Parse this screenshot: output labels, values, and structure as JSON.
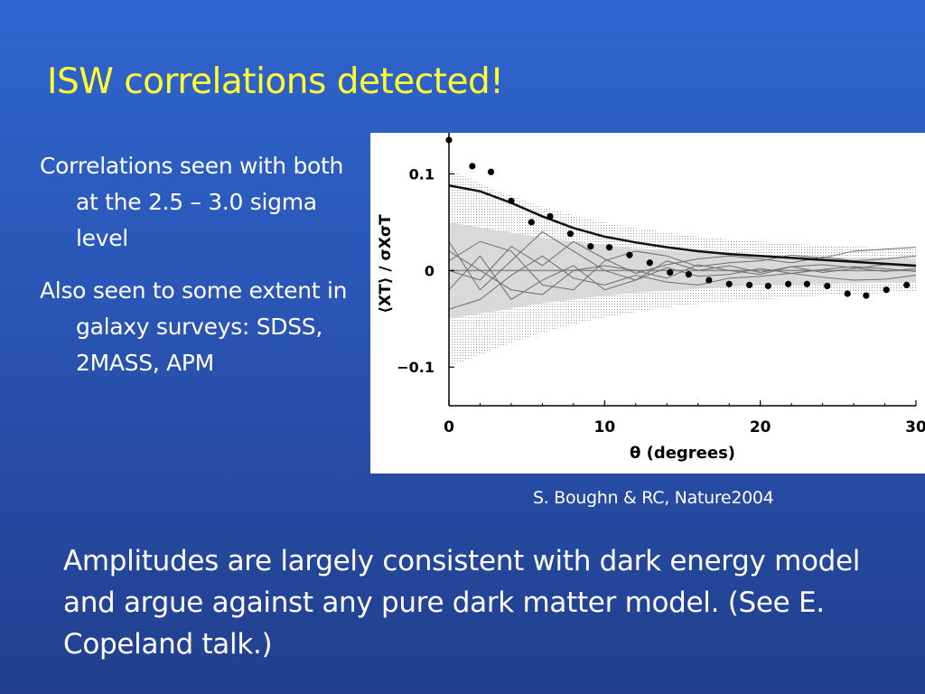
{
  "slide": {
    "title": "ISW correlations detected!",
    "bullets": [
      "Correlations seen with both at the 2.5 – 3.0 sigma level",
      "Also seen to some extent in galaxy surveys: SDSS, 2MASS, APM"
    ],
    "caption": "S. Boughn & RC, Nature2004",
    "summary": "Amplitudes are largely consistent with dark energy model and argue against any pure dark matter model.  (See E. Copeland talk.)"
  },
  "colors": {
    "title": "#ffff33",
    "text": "#ffffff",
    "background": "#2a55b4"
  },
  "chart_data": {
    "type": "scatter",
    "xlabel": "θ (degrees)",
    "ylabel": "⟨XT⟩ / σXσT",
    "xlim": [
      0,
      30
    ],
    "ylim": [
      -0.14,
      0.135
    ],
    "xticks": [
      0,
      10,
      20,
      30
    ],
    "yticks": [
      0.1,
      0,
      -0.1
    ],
    "xtick_labels": [
      "0",
      "10",
      "20",
      "30"
    ],
    "ytick_labels": [
      "0.1",
      "0",
      "−0.1"
    ],
    "grid": false,
    "points": {
      "x": [
        0,
        1.5,
        2.7,
        4,
        5.3,
        6.5,
        7.8,
        9.1,
        10.3,
        11.6,
        12.9,
        14.2,
        15.4,
        16.7,
        18,
        19.3,
        20.5,
        21.8,
        23,
        24.3,
        25.6,
        26.8,
        28.1,
        29.4
      ],
      "y": [
        0.135,
        0.108,
        0.102,
        0.072,
        0.05,
        0.056,
        0.038,
        0.025,
        0.024,
        0.016,
        0.008,
        -0.002,
        -0.004,
        -0.01,
        -0.014,
        -0.015,
        -0.016,
        -0.014,
        -0.014,
        -0.016,
        -0.024,
        -0.026,
        -0.02,
        -0.015
      ]
    },
    "model_curve": {
      "x": [
        0,
        2,
        4,
        6,
        8,
        10,
        12,
        14,
        16,
        18,
        20,
        22,
        24,
        26,
        28,
        30
      ],
      "y": [
        0.088,
        0.082,
        0.07,
        0.056,
        0.044,
        0.035,
        0.029,
        0.024,
        0.02,
        0.017,
        0.015,
        0.013,
        0.011,
        0.009,
        0.007,
        0.005
      ]
    },
    "band_outer": {
      "x": [
        0,
        3,
        6,
        9,
        12,
        15,
        18,
        21,
        24,
        27,
        30
      ],
      "upper": [
        0.105,
        0.083,
        0.066,
        0.053,
        0.044,
        0.037,
        0.032,
        0.029,
        0.026,
        0.024,
        0.022
      ],
      "lower": [
        -0.1,
        -0.081,
        -0.064,
        -0.052,
        -0.043,
        -0.036,
        -0.032,
        -0.029,
        -0.026,
        -0.024,
        -0.022
      ]
    },
    "band_inner": {
      "x": [
        0,
        3,
        6,
        9,
        12,
        15,
        18,
        21,
        24,
        27,
        30
      ],
      "upper": [
        0.05,
        0.042,
        0.034,
        0.028,
        0.023,
        0.02,
        0.017,
        0.015,
        0.014,
        0.013,
        0.012
      ],
      "lower": [
        -0.05,
        -0.042,
        -0.034,
        -0.028,
        -0.023,
        -0.02,
        -0.017,
        -0.015,
        -0.014,
        -0.013,
        -0.012
      ]
    },
    "simulations": [
      {
        "x": [
          0,
          2,
          4,
          6,
          8,
          10,
          12,
          14,
          16,
          18,
          20,
          22,
          24,
          26,
          28,
          30
        ],
        "y": [
          0.03,
          -0.02,
          0.01,
          0.04,
          0.02,
          0.0,
          -0.01,
          0.01,
          0.0,
          0.005,
          -0.002,
          0.004,
          0.006,
          0.003,
          -0.001,
          0.002
        ]
      },
      {
        "x": [
          0,
          2,
          4,
          6,
          8,
          10,
          12,
          14,
          16,
          18,
          20,
          22,
          24,
          26,
          28,
          30
        ],
        "y": [
          -0.02,
          0.015,
          -0.03,
          -0.01,
          0.005,
          -0.02,
          -0.01,
          0.003,
          -0.006,
          -0.004,
          0.002,
          -0.003,
          0.001,
          0.004,
          0.002,
          -0.001
        ]
      },
      {
        "x": [
          0,
          2,
          4,
          6,
          8,
          10,
          12,
          14,
          16,
          18,
          20,
          22,
          24,
          26,
          28,
          30
        ],
        "y": [
          0.01,
          0.03,
          0.02,
          -0.015,
          -0.02,
          0.01,
          0.02,
          0.015,
          0.004,
          0.008,
          0.01,
          0.016,
          0.013,
          0.02,
          0.022,
          0.024
        ]
      },
      {
        "x": [
          0,
          2,
          4,
          6,
          8,
          10,
          12,
          14,
          16,
          18,
          20,
          22,
          24,
          26,
          28,
          30
        ],
        "y": [
          -0.04,
          -0.03,
          -0.005,
          0.015,
          -0.008,
          -0.015,
          -0.005,
          -0.012,
          -0.015,
          -0.008,
          -0.006,
          -0.003,
          -0.007,
          -0.01,
          -0.009,
          -0.005
        ]
      },
      {
        "x": [
          0,
          2,
          4,
          6,
          8,
          10,
          12,
          14,
          16,
          18,
          20,
          22,
          24,
          26,
          28,
          30
        ],
        "y": [
          0.0,
          -0.01,
          0.025,
          0.005,
          0.03,
          0.012,
          -0.003,
          0.006,
          0.012,
          0.015,
          0.012,
          0.008,
          0.014,
          0.01,
          0.012,
          0.015
        ]
      },
      {
        "x": [
          0,
          2,
          4,
          6,
          8,
          10,
          12,
          14,
          16,
          18,
          20,
          22,
          24,
          26,
          28,
          30
        ],
        "y": [
          0.02,
          0.0,
          -0.02,
          -0.025,
          0.0,
          0.005,
          0.0,
          -0.008,
          0.006,
          0.0,
          -0.004,
          0.004,
          -0.002,
          0.002,
          0.006,
          0.004
        ]
      }
    ]
  }
}
